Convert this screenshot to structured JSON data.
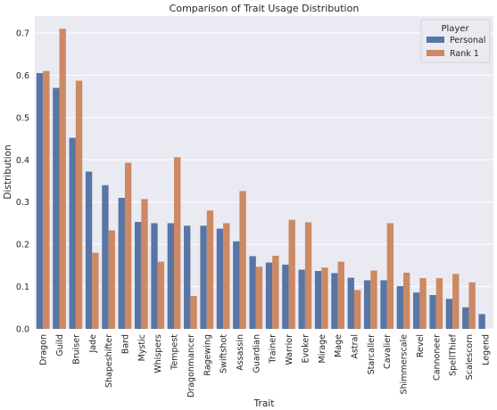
{
  "chart_data": {
    "type": "bar",
    "title": "Comparison of Trait Usage Distribution",
    "xlabel": "Trait",
    "ylabel": "Distribution",
    "ylim": [
      0,
      0.74
    ],
    "yticks": [
      "0.0",
      "0.1",
      "0.2",
      "0.3",
      "0.4",
      "0.5",
      "0.6",
      "0.7"
    ],
    "grid": true,
    "legend": {
      "title": "Player",
      "placement": "top-right"
    },
    "categories": [
      "Dragon",
      "Guild",
      "Bruiser",
      "Jade",
      "Shapeshifter",
      "Bard",
      "Mystic",
      "Whispers",
      "Tempest",
      "Dragonmancer",
      "Ragewing",
      "Swiftshot",
      "Assassin",
      "Guardian",
      "Trainer",
      "Warrior",
      "Evoker",
      "Mirage",
      "Mage",
      "Astral",
      "Starcaller",
      "Cavalier",
      "Shimmerscale",
      "Revel",
      "Cannoneer",
      "SpellThief",
      "Scalescorn",
      "Legend"
    ],
    "series": [
      {
        "name": "Personal",
        "color": "#5875a4",
        "values": [
          0.605,
          0.57,
          0.452,
          0.372,
          0.34,
          0.31,
          0.253,
          0.25,
          0.25,
          0.244,
          0.244,
          0.237,
          0.207,
          0.172,
          0.157,
          0.152,
          0.14,
          0.137,
          0.132,
          0.121,
          0.115,
          0.115,
          0.101,
          0.086,
          0.08,
          0.071,
          0.051,
          0.035
        ]
      },
      {
        "name": "Rank 1",
        "color": "#cc8963",
        "values": [
          0.61,
          0.71,
          0.587,
          0.18,
          0.233,
          0.393,
          0.307,
          0.159,
          0.406,
          0.078,
          0.28,
          0.25,
          0.326,
          0.147,
          0.173,
          0.258,
          0.252,
          0.145,
          0.159,
          0.092,
          0.138,
          0.25,
          0.133,
          0.12,
          0.12,
          0.13,
          0.11,
          0.0
        ]
      }
    ],
    "plot_bg": "#eaeaf2",
    "grid_color": "#ffffff"
  }
}
